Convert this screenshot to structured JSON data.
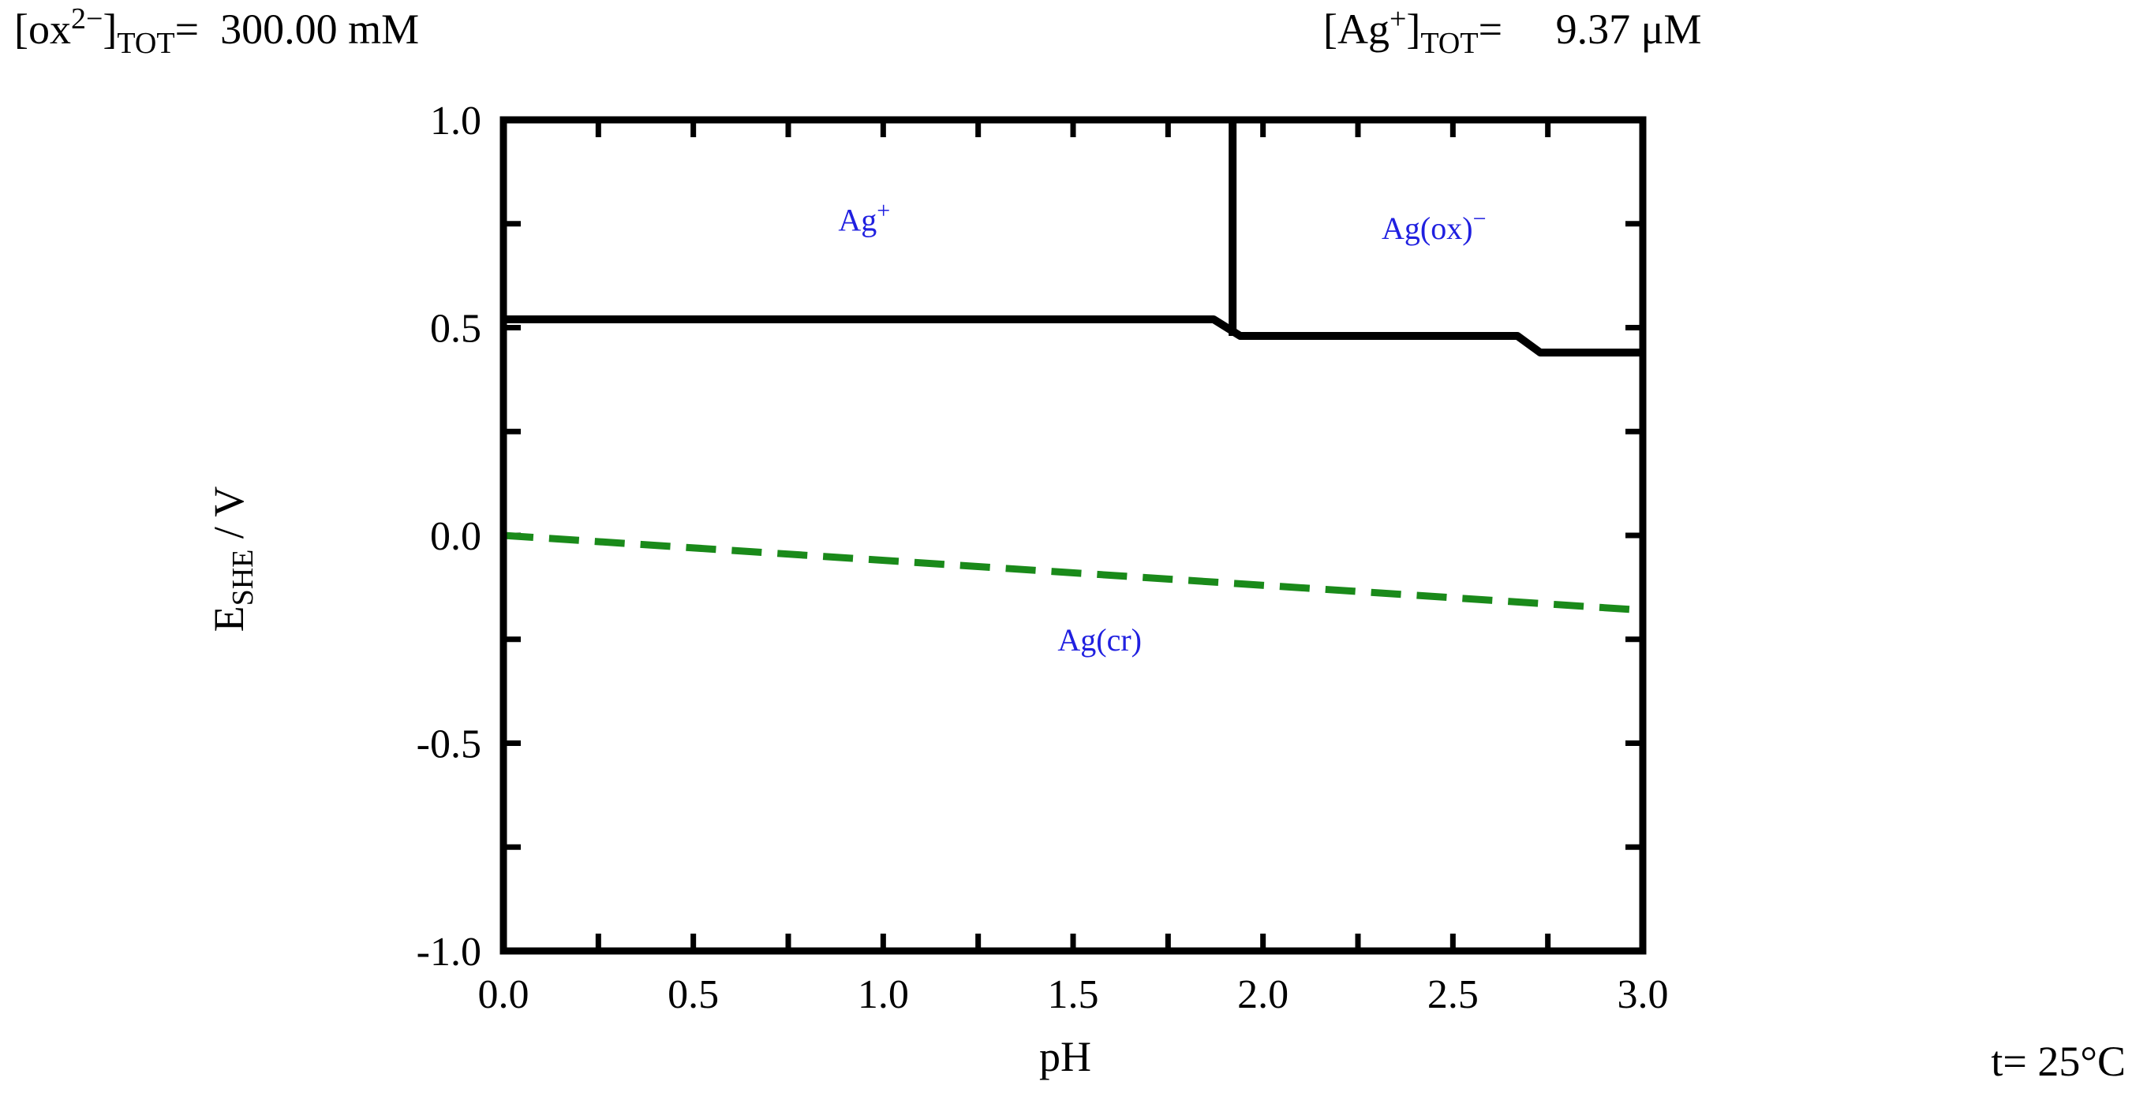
{
  "header": {
    "left_label": "[ox",
    "left_sup": "2−",
    "left_label_close": "]",
    "left_sub": "TOT",
    "left_eq": "=",
    "left_value": "300.00 mM",
    "right_label": "[Ag",
    "right_sup": "+",
    "right_label_close": "]",
    "right_sub": "TOT",
    "right_eq": "=",
    "right_value": "9.37 μM"
  },
  "temperature": "t= 25°C",
  "chart_data": {
    "type": "line",
    "xlabel": "pH",
    "ylabel_main": "E",
    "ylabel_sub": "SHE",
    "ylabel_unit": " / V",
    "xlim": [
      0.0,
      3.0
    ],
    "ylim": [
      -1.0,
      1.0
    ],
    "x_ticks": [
      0.0,
      0.5,
      1.0,
      1.5,
      2.0,
      2.5,
      3.0
    ],
    "x_tick_labels": [
      "0.0",
      "0.5",
      "1.0",
      "1.5",
      "2.0",
      "2.5",
      "3.0"
    ],
    "y_ticks": [
      1.0,
      0.5,
      0.0,
      -0.5,
      -1.0
    ],
    "y_tick_labels": [
      "1.0",
      "0.5",
      "0.0",
      "-0.5",
      "-1.0"
    ],
    "series": [
      {
        "role": "boundary",
        "color": "#000000",
        "style": "solid",
        "points": [
          [
            0.0,
            0.52
          ],
          [
            1.87,
            0.52
          ],
          [
            1.94,
            0.48
          ],
          [
            2.67,
            0.48
          ],
          [
            2.73,
            0.44
          ],
          [
            3.0,
            0.44
          ]
        ]
      },
      {
        "role": "boundary",
        "color": "#000000",
        "style": "solid",
        "points": [
          [
            1.92,
            1.0
          ],
          [
            1.92,
            0.48
          ]
        ]
      },
      {
        "role": "water-reduction",
        "color": "#1a8a1a",
        "style": "dashed",
        "points": [
          [
            0.0,
            0.0
          ],
          [
            3.0,
            -0.18
          ]
        ]
      }
    ],
    "regions": [
      {
        "label": "Ag",
        "sup": "+",
        "x": 0.95,
        "y": 0.76
      },
      {
        "label": "Ag(ox)",
        "sup": "−",
        "x": 2.45,
        "y": 0.74
      },
      {
        "label": "Ag(cr)",
        "sup": "",
        "x": 1.57,
        "y": -0.25
      }
    ]
  }
}
